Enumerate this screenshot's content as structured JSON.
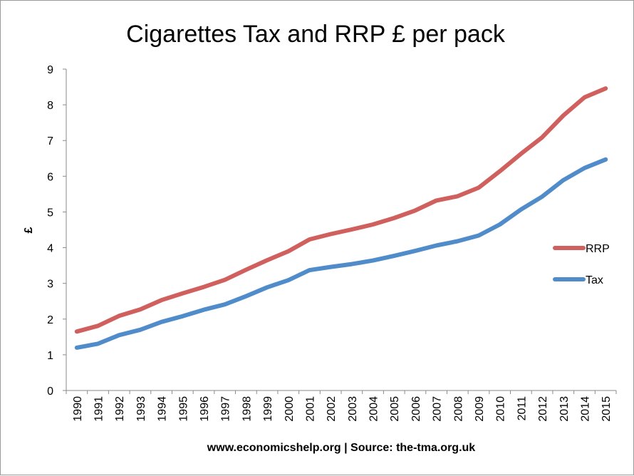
{
  "chart_data": {
    "type": "line",
    "title": "Cigarettes Tax and RRP £ per pack",
    "xlabel": "www.economicshelp.org | Source: the-tma.org.uk",
    "ylabel": "£",
    "ylim": [
      0,
      9
    ],
    "yticks": [
      "0",
      "1",
      "2",
      "3",
      "4",
      "5",
      "6",
      "7",
      "8",
      "9"
    ],
    "categories": [
      "1990",
      "1991",
      "1992",
      "1993",
      "1994",
      "1995",
      "1996",
      "1997",
      "1998",
      "1999",
      "2000",
      "2001",
      "2002",
      "2003",
      "2004",
      "2005",
      "2006",
      "2007",
      "2008",
      "2009",
      "2010",
      "2011",
      "2012",
      "2013",
      "2014",
      "2015"
    ],
    "grid": false,
    "legend_position": "right",
    "series": [
      {
        "name": "RRP",
        "color": "#d0605e",
        "values": [
          1.65,
          1.81,
          2.09,
          2.27,
          2.53,
          2.72,
          2.9,
          3.1,
          3.38,
          3.65,
          3.9,
          4.23,
          4.38,
          4.51,
          4.65,
          4.83,
          5.04,
          5.32,
          5.44,
          5.68,
          6.14,
          6.63,
          7.09,
          7.7,
          8.21,
          8.46
        ]
      },
      {
        "name": "Tax",
        "color": "#4f8cc9",
        "values": [
          1.2,
          1.31,
          1.55,
          1.7,
          1.92,
          2.08,
          2.26,
          2.41,
          2.64,
          2.89,
          3.09,
          3.37,
          3.46,
          3.54,
          3.64,
          3.77,
          3.91,
          4.06,
          4.18,
          4.34,
          4.65,
          5.07,
          5.43,
          5.89,
          6.23,
          6.47
        ]
      }
    ]
  }
}
